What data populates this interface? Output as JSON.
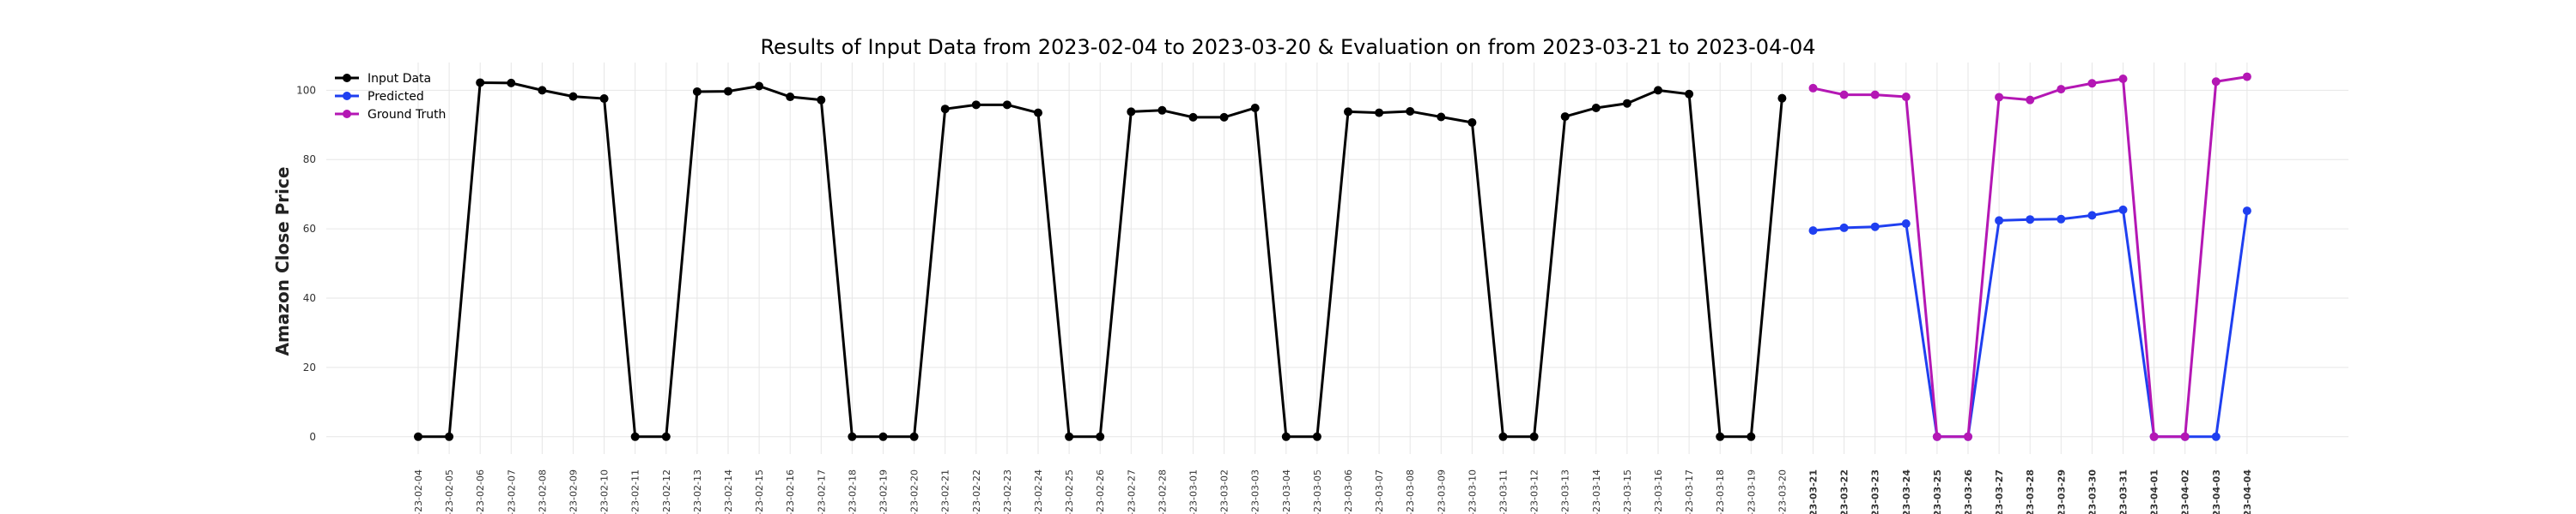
{
  "chart_data": {
    "type": "line",
    "title": "Results of Input Data from 2023-02-04 to 2023-03-20 & Evaluation on from 2023-03-21 to 2023-04-04",
    "xlabel": "",
    "ylabel": "Amazon Close Price",
    "ylim": [
      -5,
      108
    ],
    "yticks": [
      0,
      20,
      40,
      60,
      80,
      100
    ],
    "grid": true,
    "legend_position": "top-left",
    "dates": [
      "2023-02-04",
      "2023-02-05",
      "2023-02-06",
      "2023-02-07",
      "2023-02-08",
      "2023-02-09",
      "2023-02-10",
      "2023-02-11",
      "2023-02-12",
      "2023-02-13",
      "2023-02-14",
      "2023-02-15",
      "2023-02-16",
      "2023-02-17",
      "2023-02-18",
      "2023-02-19",
      "2023-02-20",
      "2023-02-21",
      "2023-02-22",
      "2023-02-23",
      "2023-02-24",
      "2023-02-25",
      "2023-02-26",
      "2023-02-27",
      "2023-02-28",
      "2023-03-01",
      "2023-03-02",
      "2023-03-03",
      "2023-03-04",
      "2023-03-05",
      "2023-03-06",
      "2023-03-07",
      "2023-03-08",
      "2023-03-09",
      "2023-03-10",
      "2023-03-11",
      "2023-03-12",
      "2023-03-13",
      "2023-03-14",
      "2023-03-15",
      "2023-03-16",
      "2023-03-17",
      "2023-03-18",
      "2023-03-19",
      "2023-03-20",
      "2023-03-21",
      "2023-03-22",
      "2023-03-23",
      "2023-03-24",
      "2023-03-25",
      "2023-03-26",
      "2023-03-27",
      "2023-03-28",
      "2023-03-29",
      "2023-03-30",
      "2023-03-31",
      "2023-04-01",
      "2023-04-02",
      "2023-04-03",
      "2023-04-04"
    ],
    "xtick_labels": [
      "-23-02-04",
      "-23-02-05",
      "-23-02-06",
      "-23-02-07",
      "-23-02-08",
      "-23-02-09",
      "-23-02-10",
      "-23-02-11",
      "-23-02-12",
      "-23-02-13",
      "-23-02-14",
      "-23-02-15",
      "-23-02-16",
      "-23-02-17",
      "-23-02-18",
      "-23-02-19",
      "-23-02-20",
      "-23-02-21",
      "-23-02-22",
      "-23-02-23",
      "-23-02-24",
      "-23-02-25",
      "-23-02-26",
      "-23-02-27",
      "-23-02-28",
      "-23-03-01",
      "-23-03-02",
      "-23-03-03",
      "-23-03-04",
      "-23-03-05",
      "-23-03-06",
      "-23-03-07",
      "-23-03-08",
      "-23-03-09",
      "-23-03-10",
      "-23-03-11",
      "-23-03-12",
      "-23-03-13",
      "-23-03-14",
      "-23-03-15",
      "-23-03-16",
      "-23-03-17",
      "-23-03-18",
      "-23-03-19",
      "-23-03-20",
      "-23-03-21",
      "-23-03-22",
      "-23-03-23",
      "-23-03-24",
      "-23-03-25",
      "-23-03-26",
      "-23-03-27",
      "-23-03-28",
      "-23-03-29",
      "-23-03-30",
      "-23-03-31",
      "-23-04-01",
      "-23-04-02",
      "-23-04-03",
      "-23-04-04"
    ],
    "bold_from_date": "2023-03-21",
    "series": [
      {
        "name": "Input Data",
        "color": "#000000",
        "points": [
          [
            "2023-02-04",
            0
          ],
          [
            "2023-02-05",
            0
          ],
          [
            "2023-02-06",
            102.2
          ],
          [
            "2023-02-07",
            102.1
          ],
          [
            "2023-02-08",
            100.0
          ],
          [
            "2023-02-09",
            98.2
          ],
          [
            "2023-02-10",
            97.6
          ],
          [
            "2023-02-11",
            0
          ],
          [
            "2023-02-12",
            0
          ],
          [
            "2023-02-13",
            99.6
          ],
          [
            "2023-02-14",
            99.7
          ],
          [
            "2023-02-15",
            101.2
          ],
          [
            "2023-02-16",
            98.1
          ],
          [
            "2023-02-17",
            97.2
          ],
          [
            "2023-02-18",
            0
          ],
          [
            "2023-02-19",
            0
          ],
          [
            "2023-02-20",
            0
          ],
          [
            "2023-02-21",
            94.6
          ],
          [
            "2023-02-22",
            95.8
          ],
          [
            "2023-02-23",
            95.8
          ],
          [
            "2023-02-24",
            93.5
          ],
          [
            "2023-02-25",
            0
          ],
          [
            "2023-02-26",
            0
          ],
          [
            "2023-02-27",
            93.8
          ],
          [
            "2023-02-28",
            94.2
          ],
          [
            "2023-03-01",
            92.2
          ],
          [
            "2023-03-02",
            92.2
          ],
          [
            "2023-03-03",
            94.9
          ],
          [
            "2023-03-04",
            0
          ],
          [
            "2023-03-05",
            0
          ],
          [
            "2023-03-06",
            93.8
          ],
          [
            "2023-03-07",
            93.5
          ],
          [
            "2023-03-08",
            93.9
          ],
          [
            "2023-03-09",
            92.3
          ],
          [
            "2023-03-10",
            90.7
          ],
          [
            "2023-03-11",
            0
          ],
          [
            "2023-03-12",
            0
          ],
          [
            "2023-03-13",
            92.4
          ],
          [
            "2023-03-14",
            94.9
          ],
          [
            "2023-03-15",
            96.2
          ],
          [
            "2023-03-16",
            100.0
          ],
          [
            "2023-03-17",
            98.9
          ],
          [
            "2023-03-18",
            0
          ],
          [
            "2023-03-19",
            0
          ],
          [
            "2023-03-20",
            97.7
          ]
        ]
      },
      {
        "name": "Predicted",
        "color": "#1f3ff0",
        "points": [
          [
            "2023-03-21",
            59.5
          ],
          [
            "2023-03-22",
            60.3
          ],
          [
            "2023-03-23",
            60.6
          ],
          [
            "2023-03-24",
            61.5
          ],
          [
            "2023-03-25",
            0
          ],
          [
            "2023-03-26",
            0
          ],
          [
            "2023-03-27",
            62.4
          ],
          [
            "2023-03-28",
            62.7
          ],
          [
            "2023-03-29",
            62.8
          ],
          [
            "2023-03-30",
            63.9
          ],
          [
            "2023-03-31",
            65.5
          ],
          [
            "2023-04-01",
            0
          ],
          [
            "2023-04-02",
            0
          ],
          [
            "2023-04-03",
            0
          ],
          [
            "2023-04-04",
            65.2
          ]
        ]
      },
      {
        "name": "Ground Truth",
        "color": "#b417b4",
        "points": [
          [
            "2023-03-21",
            100.6
          ],
          [
            "2023-03-22",
            98.7
          ],
          [
            "2023-03-23",
            98.7
          ],
          [
            "2023-03-24",
            98.1
          ],
          [
            "2023-03-25",
            0
          ],
          [
            "2023-03-26",
            0
          ],
          [
            "2023-03-27",
            98.0
          ],
          [
            "2023-03-28",
            97.2
          ],
          [
            "2023-03-29",
            100.3
          ],
          [
            "2023-03-30",
            102.0
          ],
          [
            "2023-03-31",
            103.3
          ],
          [
            "2023-04-01",
            0
          ],
          [
            "2023-04-02",
            0
          ],
          [
            "2023-04-03",
            102.5
          ],
          [
            "2023-04-04",
            103.9
          ]
        ]
      }
    ]
  }
}
